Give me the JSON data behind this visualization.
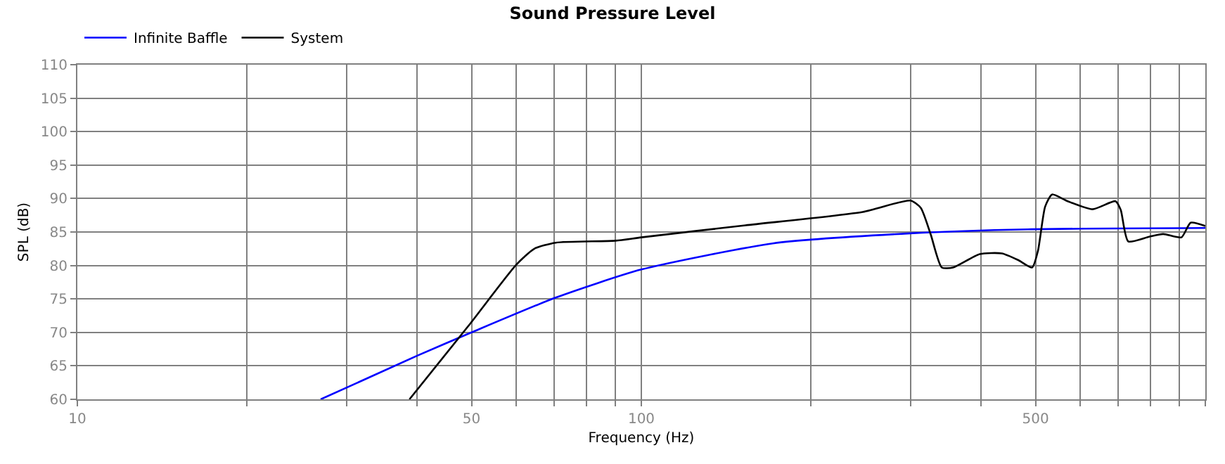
{
  "chart_data": {
    "type": "line",
    "title": "Sound Pressure Level",
    "xlabel": "Frequency (Hz)",
    "ylabel": "SPL (dB)",
    "log": "x",
    "grid": true,
    "legend": "top left",
    "marker": "none",
    "line_style": "solid",
    "xlim": [
      10,
      1000
    ],
    "xticks": [
      10,
      {
        "value": 20,
        "label": null
      },
      {
        "value": 30,
        "label": null
      },
      {
        "value": 40,
        "label": null
      },
      50,
      {
        "value": 60,
        "label": null
      },
      {
        "value": 70,
        "label": null
      },
      {
        "value": 80,
        "label": null
      },
      {
        "value": 90,
        "label": null
      },
      100,
      {
        "value": 200,
        "label": null
      },
      {
        "value": 300,
        "label": null
      },
      {
        "value": 400,
        "label": null
      },
      500,
      {
        "value": 600,
        "label": null
      },
      {
        "value": 700,
        "label": null
      },
      {
        "value": 800,
        "label": null
      },
      {
        "value": 900,
        "label": null
      },
      {
        "value": 1000,
        "label": null
      }
    ],
    "ylim": [
      60,
      110
    ],
    "yticks": [
      60,
      65,
      70,
      75,
      80,
      85,
      90,
      95,
      100,
      105,
      110
    ],
    "series": [
      {
        "name": "Infinite Baffle",
        "color": "#0000ff",
        "x": [
          27,
          40,
          50,
          70.5,
          100,
          171,
          300,
          484,
          1000
        ],
        "values": [
          60,
          66.5,
          70,
          75.2,
          79.4,
          83.3,
          84.8,
          85.4,
          85.6
        ]
      },
      {
        "name": "System",
        "color": "#000000",
        "x": [
          38.8,
          49.4,
          60,
          64.6,
          70.5,
          90,
          100,
          153,
          247,
          300,
          313,
          326,
          341,
          357,
          398,
          436,
          466,
          493,
          505,
          520,
          535,
          570,
          631,
          693,
          708,
          730,
          795,
          842,
          907,
          942,
          1000
        ],
        "values": [
          60,
          71,
          80.1,
          82.5,
          83.4,
          83.7,
          84.2,
          86,
          88,
          89.7,
          88.6,
          84.6,
          79.7,
          79.7,
          81.7,
          81.8,
          80.8,
          79.7,
          82.2,
          88.8,
          90.6,
          89.6,
          88.4,
          89.6,
          88.3,
          83.6,
          84.3,
          84.7,
          84.2,
          86.4,
          85.9
        ]
      }
    ]
  }
}
